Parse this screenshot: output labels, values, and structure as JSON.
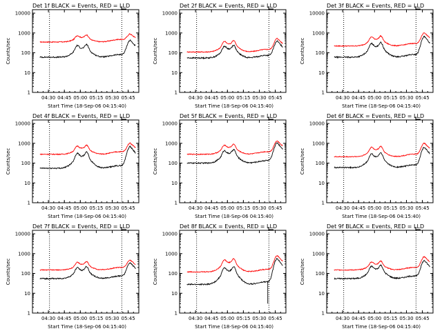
{
  "colors": {
    "events": "#000000",
    "lld": "#ff0000",
    "axes": "#000000"
  },
  "chart_data": [
    {
      "type": "line",
      "title": "Det 1f BLACK = Events, RED = LLD",
      "xlabel": "Start Time (18-Sep-06 04:15:40)",
      "ylabel": "Counts/sec",
      "x_ticks": [
        "04:30",
        "04:45",
        "05:00",
        "05:15",
        "05:30",
        "05:45"
      ],
      "y_ticks": [
        "1",
        "10",
        "100",
        "1000",
        "10000"
      ],
      "ylim": [
        1,
        15000
      ],
      "y_scale": "log",
      "grid": false,
      "series": [
        {
          "name": "Events",
          "color": "#000000"
        },
        {
          "name": "LLD",
          "color": "#ff0000"
        }
      ],
      "events_profile": {
        "base": 60,
        "p1": {
          "at": "05:02",
          "v": 260
        },
        "p2": {
          "at": "05:47",
          "v": 420
        }
      },
      "lld_profile": {
        "base": 350,
        "p1": {
          "at": "05:02",
          "v": 800
        },
        "p2": {
          "at": "05:47",
          "v": 850
        }
      }
    },
    {
      "type": "line",
      "title": "Det 2f BLACK = Events, RED = LLD",
      "xlabel": "Start Time (18-Sep-06 04:15:40)",
      "ylabel": "Counts/sec",
      "x_ticks": [
        "04:30",
        "04:45",
        "05:00",
        "05:15",
        "05:30",
        "05:45"
      ],
      "y_ticks": [
        "1",
        "10",
        "100",
        "1000",
        "10000"
      ],
      "ylim": [
        1,
        15000
      ],
      "y_scale": "log",
      "grid": false,
      "series": [
        {
          "name": "Events",
          "color": "#000000"
        },
        {
          "name": "LLD",
          "color": "#ff0000"
        }
      ],
      "events_profile": {
        "base": 55,
        "p1": {
          "at": "05:02",
          "v": 240
        },
        "p2": {
          "at": "05:47",
          "v": 380
        }
      },
      "lld_profile": {
        "base": 110,
        "p1": {
          "at": "05:02",
          "v": 420
        },
        "p2": {
          "at": "05:47",
          "v": 520
        }
      }
    },
    {
      "type": "line",
      "title": "Det 3f BLACK = Events, RED = LLD",
      "xlabel": "Start Time (18-Sep-06 04:15:40)",
      "ylabel": "Counts/sec",
      "x_ticks": [
        "04:30",
        "04:45",
        "05:00",
        "05:15",
        "05:30",
        "05:45"
      ],
      "y_ticks": [
        "1",
        "10",
        "100",
        "1000",
        "10000"
      ],
      "ylim": [
        1,
        15000
      ],
      "y_scale": "log",
      "grid": false,
      "series": [
        {
          "name": "Events",
          "color": "#000000"
        },
        {
          "name": "LLD",
          "color": "#ff0000"
        }
      ],
      "events_profile": {
        "base": 60,
        "p1": {
          "at": "05:02",
          "v": 330
        },
        "p2": {
          "at": "05:47",
          "v": 640
        }
      },
      "lld_profile": {
        "base": 220,
        "p1": {
          "at": "05:02",
          "v": 700
        },
        "p2": {
          "at": "05:47",
          "v": 1000
        }
      }
    },
    {
      "type": "line",
      "title": "Det 4f BLACK = Events, RED = LLD",
      "xlabel": "Start Time (18-Sep-06 04:15:40)",
      "ylabel": "Counts/sec",
      "x_ticks": [
        "04:30",
        "04:45",
        "05:00",
        "05:15",
        "05:30",
        "05:45"
      ],
      "y_ticks": [
        "1",
        "10",
        "100",
        "1000",
        "10000"
      ],
      "ylim": [
        1,
        15000
      ],
      "y_scale": "log",
      "grid": false,
      "series": [
        {
          "name": "Events",
          "color": "#000000"
        },
        {
          "name": "LLD",
          "color": "#ff0000"
        }
      ],
      "events_profile": {
        "base": 55,
        "p1": {
          "at": "05:02",
          "v": 360
        },
        "p2": {
          "at": "05:47",
          "v": 680
        }
      },
      "lld_profile": {
        "base": 280,
        "p1": {
          "at": "05:02",
          "v": 800
        },
        "p2": {
          "at": "05:47",
          "v": 1000
        }
      }
    },
    {
      "type": "line",
      "title": "Det 5f BLACK = Events, RED = LLD",
      "xlabel": "Start Time (18-Sep-06 04:15:40)",
      "ylabel": "Counts/sec",
      "x_ticks": [
        "04:30",
        "04:45",
        "05:00",
        "05:15",
        "05:30",
        "05:45"
      ],
      "y_ticks": [
        "1",
        "10",
        "100",
        "1000",
        "10000"
      ],
      "ylim": [
        1,
        15000
      ],
      "y_scale": "log",
      "grid": false,
      "series": [
        {
          "name": "Events",
          "color": "#000000"
        },
        {
          "name": "LLD",
          "color": "#ff0000"
        }
      ],
      "events_profile": {
        "base": 100,
        "p1": {
          "at": "05:02",
          "v": 480
        },
        "p2": {
          "at": "05:47",
          "v": 1050
        }
      },
      "lld_profile": {
        "base": 280,
        "p1": {
          "at": "05:02",
          "v": 900
        },
        "p2": {
          "at": "05:47",
          "v": 1300
        }
      }
    },
    {
      "type": "line",
      "title": "Det 6f BLACK = Events, RED = LLD",
      "xlabel": "Start Time (18-Sep-06 04:15:40)",
      "ylabel": "Counts/sec",
      "x_ticks": [
        "04:30",
        "04:45",
        "05:00",
        "05:15",
        "05:30",
        "05:45"
      ],
      "y_ticks": [
        "1",
        "10",
        "100",
        "1000",
        "10000"
      ],
      "ylim": [
        1,
        15000
      ],
      "y_scale": "log",
      "grid": false,
      "series": [
        {
          "name": "Events",
          "color": "#000000"
        },
        {
          "name": "LLD",
          "color": "#ff0000"
        }
      ],
      "events_profile": {
        "base": 60,
        "p1": {
          "at": "05:02",
          "v": 330
        },
        "p2": {
          "at": "05:47",
          "v": 620
        }
      },
      "lld_profile": {
        "base": 210,
        "p1": {
          "at": "05:02",
          "v": 700
        },
        "p2": {
          "at": "05:47",
          "v": 1000
        }
      }
    },
    {
      "type": "line",
      "title": "Det 7f BLACK = Events, RED = LLD",
      "xlabel": "Start Time (18-Sep-06 04:15:40)",
      "ylabel": "Counts/sec",
      "x_ticks": [
        "04:30",
        "04:45",
        "05:00",
        "05:15",
        "05:30",
        "05:45"
      ],
      "y_ticks": [
        "1",
        "10",
        "100",
        "1000",
        "10000"
      ],
      "ylim": [
        1,
        15000
      ],
      "y_scale": "log",
      "grid": false,
      "series": [
        {
          "name": "Events",
          "color": "#000000"
        },
        {
          "name": "LLD",
          "color": "#ff0000"
        }
      ],
      "events_profile": {
        "base": 55,
        "p1": {
          "at": "05:02",
          "v": 220
        },
        "p2": {
          "at": "05:47",
          "v": 340
        }
      },
      "lld_profile": {
        "base": 150,
        "p1": {
          "at": "05:02",
          "v": 400
        },
        "p2": {
          "at": "05:47",
          "v": 450
        }
      }
    },
    {
      "type": "line",
      "title": "Det 8f BLACK = Events, RED = LLD",
      "xlabel": "Start Time (18-Sep-06 04:15:40)",
      "ylabel": "Counts/sec",
      "x_ticks": [
        "04:30",
        "04:45",
        "05:00",
        "05:15",
        "05:30",
        "05:45"
      ],
      "y_ticks": [
        "1",
        "10",
        "100",
        "1000",
        "10000"
      ],
      "ylim": [
        1,
        15000
      ],
      "y_scale": "log",
      "grid": false,
      "series": [
        {
          "name": "Events",
          "color": "#000000"
        },
        {
          "name": "LLD",
          "color": "#ff0000"
        }
      ],
      "events_profile": {
        "base": 28,
        "p1": {
          "at": "05:02",
          "v": 220
        },
        "p2": {
          "at": "05:47",
          "v": 560
        }
      },
      "lld_profile": {
        "base": 120,
        "p1": {
          "at": "05:02",
          "v": 550
        },
        "p2": {
          "at": "05:47",
          "v": 780
        }
      },
      "dip": {
        "at": "05:38",
        "v": 3
      }
    },
    {
      "type": "line",
      "title": "Det 9f BLACK = Events, RED = LLD",
      "xlabel": "Start Time (18-Sep-06 04:15:40)",
      "ylabel": "Counts/sec",
      "x_ticks": [
        "04:30",
        "04:45",
        "05:00",
        "05:15",
        "05:30",
        "05:45"
      ],
      "y_ticks": [
        "1",
        "10",
        "100",
        "1000",
        "10000"
      ],
      "ylim": [
        1,
        15000
      ],
      "y_scale": "log",
      "grid": false,
      "series": [
        {
          "name": "Events",
          "color": "#000000"
        },
        {
          "name": "LLD",
          "color": "#ff0000"
        }
      ],
      "events_profile": {
        "base": 55,
        "p1": {
          "at": "05:02",
          "v": 260
        },
        "p2": {
          "at": "05:47",
          "v": 440
        }
      },
      "lld_profile": {
        "base": 150,
        "p1": {
          "at": "05:02",
          "v": 420
        },
        "p2": {
          "at": "05:47",
          "v": 680
        }
      }
    }
  ]
}
